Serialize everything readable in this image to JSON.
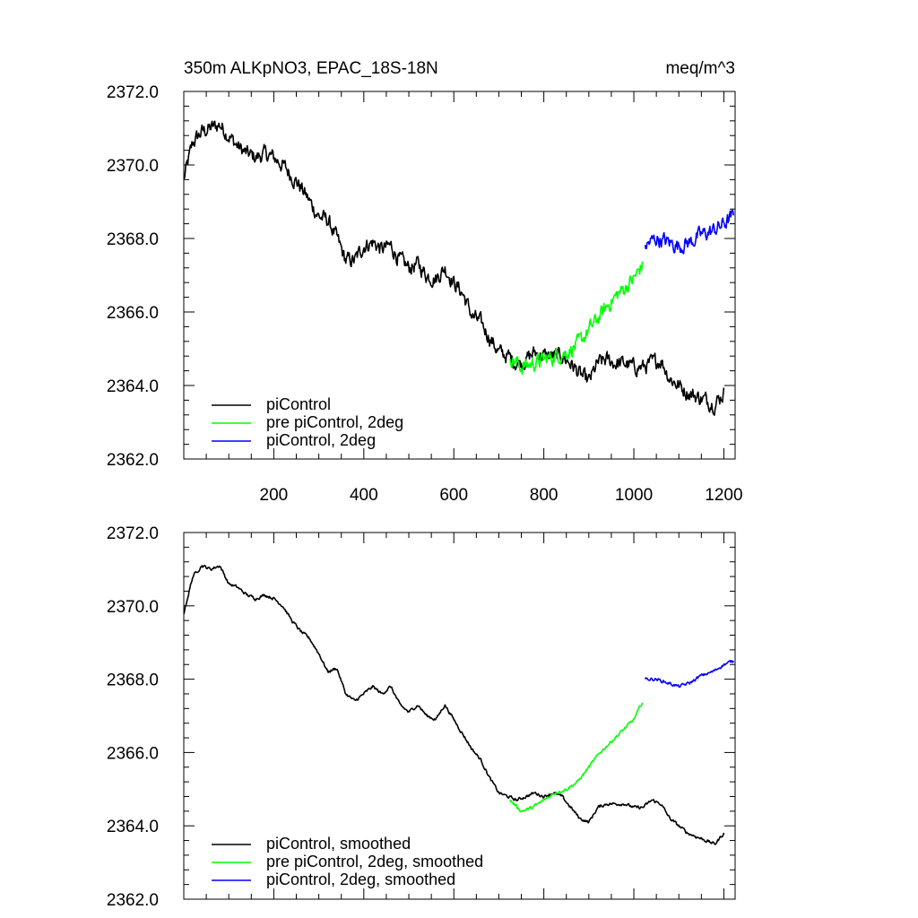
{
  "chart_data": [
    {
      "type": "line",
      "title": "350m ALKpNO3, EPAC_18S-18N",
      "units": "meq/m^3",
      "xlim": [
        0,
        1225
      ],
      "ylim": [
        2362.0,
        2372.0
      ],
      "x_ticks": [
        200,
        400,
        600,
        800,
        1000,
        1200
      ],
      "x_tick_labels": [
        "200",
        "400",
        "600",
        "800",
        "1000",
        "1200"
      ],
      "y_ticks": [
        2362.0,
        2364.0,
        2366.0,
        2368.0,
        2370.0,
        2372.0
      ],
      "y_tick_labels": [
        "2362.0",
        "2364.0",
        "2366.0",
        "2368.0",
        "2370.0",
        "2372.0"
      ],
      "grid": false,
      "legend_position": "bottom-left",
      "noise": 0.35,
      "series": [
        {
          "name": "piControl",
          "color": "#000000",
          "x": [
            0,
            20,
            40,
            60,
            80,
            100,
            120,
            140,
            160,
            180,
            200,
            220,
            240,
            260,
            280,
            300,
            320,
            340,
            360,
            380,
            400,
            420,
            440,
            460,
            480,
            500,
            520,
            540,
            560,
            580,
            600,
            620,
            640,
            660,
            680,
            700,
            720,
            740,
            760,
            780,
            800,
            820,
            840,
            860,
            880,
            900,
            920,
            940,
            960,
            980,
            1000,
            1020,
            1040,
            1060,
            1080,
            1100,
            1120,
            1140,
            1160,
            1180,
            1200
          ],
          "values": [
            2369.6,
            2370.6,
            2370.9,
            2371.0,
            2371.1,
            2370.8,
            2370.5,
            2370.3,
            2370.2,
            2370.3,
            2370.2,
            2370.0,
            2369.7,
            2369.4,
            2369.0,
            2368.6,
            2368.5,
            2368.0,
            2367.4,
            2367.4,
            2367.8,
            2367.9,
            2367.7,
            2367.8,
            2367.4,
            2367.2,
            2367.3,
            2367.0,
            2366.9,
            2367.2,
            2366.8,
            2366.5,
            2365.9,
            2365.7,
            2365.3,
            2364.9,
            2364.8,
            2364.6,
            2364.7,
            2364.9,
            2364.8,
            2364.8,
            2364.8,
            2364.6,
            2364.3,
            2364.1,
            2364.6,
            2364.7,
            2364.6,
            2364.6,
            2364.5,
            2364.5,
            2364.6,
            2364.7,
            2364.2,
            2364.0,
            2363.8,
            2363.7,
            2363.6,
            2363.5,
            2363.8
          ]
        },
        {
          "name": "pre piControl, 2deg",
          "color": "#00ff00",
          "x": [
            725,
            750,
            775,
            800,
            825,
            850,
            875,
            900,
            925,
            950,
            975,
            1000,
            1020
          ],
          "values": [
            2364.8,
            2364.5,
            2364.6,
            2364.7,
            2364.8,
            2364.9,
            2365.1,
            2365.5,
            2365.9,
            2366.3,
            2366.6,
            2366.9,
            2367.3
          ]
        },
        {
          "name": "piControl, 2deg",
          "color": "#0000ff",
          "x": [
            1025,
            1050,
            1075,
            1100,
            1125,
            1150,
            1175,
            1200,
            1222
          ],
          "values": [
            2367.8,
            2368.0,
            2367.9,
            2367.8,
            2367.9,
            2368.1,
            2368.2,
            2368.4,
            2368.6
          ]
        }
      ]
    },
    {
      "type": "line",
      "xlim": [
        0,
        1225
      ],
      "ylim": [
        2362.0,
        2372.0
      ],
      "x_ticks": [
        200,
        400,
        600,
        800,
        1000,
        1200
      ],
      "x_tick_labels": [],
      "y_ticks": [
        2362.0,
        2364.0,
        2366.0,
        2368.0,
        2370.0,
        2372.0
      ],
      "y_tick_labels": [
        "2362.0",
        "2364.0",
        "2366.0",
        "2368.0",
        "2370.0",
        "2372.0"
      ],
      "grid": false,
      "legend_position": "bottom-left",
      "noise": 0.07,
      "series": [
        {
          "name": "piControl, smoothed",
          "color": "#000000",
          "x": [
            0,
            20,
            40,
            60,
            80,
            100,
            120,
            140,
            160,
            180,
            200,
            220,
            240,
            260,
            280,
            300,
            320,
            340,
            360,
            380,
            400,
            420,
            440,
            460,
            480,
            500,
            520,
            540,
            560,
            580,
            600,
            620,
            640,
            660,
            680,
            700,
            720,
            740,
            760,
            780,
            800,
            820,
            840,
            860,
            880,
            900,
            920,
            940,
            960,
            980,
            1000,
            1020,
            1040,
            1060,
            1080,
            1100,
            1120,
            1140,
            1160,
            1180,
            1200
          ],
          "values": [
            2369.8,
            2370.8,
            2371.1,
            2371.0,
            2371.1,
            2370.6,
            2370.5,
            2370.3,
            2370.2,
            2370.3,
            2370.2,
            2370.0,
            2369.6,
            2369.3,
            2369.1,
            2368.7,
            2368.2,
            2368.3,
            2367.6,
            2367.4,
            2367.6,
            2367.8,
            2367.6,
            2367.8,
            2367.3,
            2367.1,
            2367.3,
            2367.0,
            2366.9,
            2367.3,
            2366.9,
            2366.5,
            2366.1,
            2365.8,
            2365.3,
            2364.9,
            2364.8,
            2364.7,
            2364.8,
            2364.9,
            2364.8,
            2364.9,
            2364.8,
            2364.5,
            2364.2,
            2364.1,
            2364.5,
            2364.6,
            2364.6,
            2364.6,
            2364.5,
            2364.5,
            2364.7,
            2364.6,
            2364.2,
            2364.0,
            2363.8,
            2363.7,
            2363.6,
            2363.5,
            2363.8
          ]
        },
        {
          "name": "pre piControl, 2deg, smoothed",
          "color": "#00ff00",
          "x": [
            725,
            750,
            775,
            800,
            825,
            850,
            875,
            900,
            925,
            950,
            975,
            1000,
            1020
          ],
          "values": [
            2364.7,
            2364.4,
            2364.5,
            2364.7,
            2364.9,
            2365.0,
            2365.2,
            2365.6,
            2366.0,
            2366.3,
            2366.6,
            2366.9,
            2367.4
          ]
        },
        {
          "name": "piControl, 2deg, smoothed",
          "color": "#0000ff",
          "x": [
            1025,
            1050,
            1075,
            1100,
            1125,
            1150,
            1175,
            1200,
            1222
          ],
          "values": [
            2368.0,
            2368.0,
            2367.9,
            2367.8,
            2367.9,
            2368.1,
            2368.2,
            2368.4,
            2368.5
          ]
        }
      ]
    }
  ]
}
